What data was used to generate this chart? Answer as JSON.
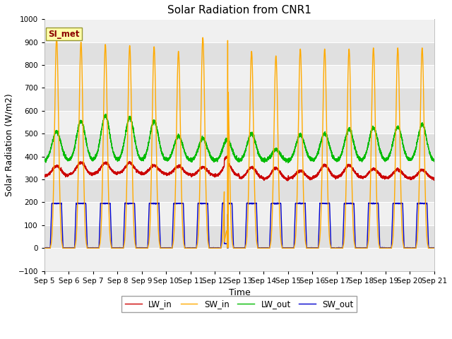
{
  "title": "Solar Radiation from CNR1",
  "xlabel": "Time",
  "ylabel": "Solar Radiation (W/m2)",
  "ylim": [
    -100,
    1000
  ],
  "yticks": [
    -100,
    0,
    100,
    200,
    300,
    400,
    500,
    600,
    700,
    800,
    900,
    1000
  ],
  "annotation_label": "SI_met",
  "line_colors": {
    "LW_in": "#cc0000",
    "SW_in": "#ffaa00",
    "LW_out": "#00bb00",
    "SW_out": "#0000cc"
  },
  "legend_labels": [
    "LW_in",
    "SW_in",
    "LW_out",
    "SW_out"
  ],
  "bg_color": "#e8e8e8",
  "fig_bg": "#ffffff",
  "grid_color": "#ffffff",
  "title_fontsize": 11,
  "label_fontsize": 9,
  "tick_fontsize": 7.5
}
